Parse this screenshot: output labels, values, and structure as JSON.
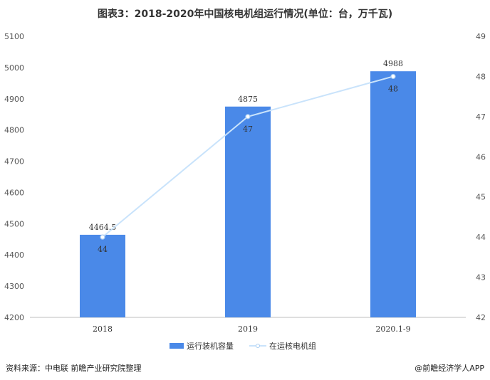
{
  "title": "图表3：2018-2020年中国核电机组运行情况(单位：台，万千瓦)",
  "footer": {
    "source": "资料来源：中电联 前瞻产业研究院整理",
    "brand": "@前瞻经济学人APP"
  },
  "colors": {
    "bar": "#4a89e8",
    "line": "#c9e3fb",
    "marker_fill": "#ffffff",
    "axis": "#bfbfbf"
  },
  "chart_data": {
    "type": "bar",
    "title": "",
    "categories": [
      "2018",
      "2019",
      "2020.1-9"
    ],
    "series": [
      {
        "name": "运行装机容量",
        "type": "bar",
        "axis": "left",
        "values": [
          4464.5,
          4875,
          4988
        ],
        "labels": [
          "4464.5",
          "4875",
          "4988"
        ]
      },
      {
        "name": "在运核电机组",
        "type": "line",
        "axis": "right",
        "values": [
          44,
          47,
          48
        ],
        "labels": [
          "44",
          "47",
          "48"
        ]
      }
    ],
    "y_left": {
      "min": 4200,
      "max": 5100,
      "ticks": [
        "5100",
        "5000",
        "4900",
        "4800",
        "4700",
        "4600",
        "4500",
        "4400",
        "4300",
        "4200"
      ]
    },
    "y_right": {
      "min": 42,
      "max": 49,
      "ticks": [
        "49",
        "48",
        "47",
        "46",
        "45",
        "44",
        "43",
        "42"
      ]
    },
    "legend_position": "bottom-center",
    "grid": false
  }
}
